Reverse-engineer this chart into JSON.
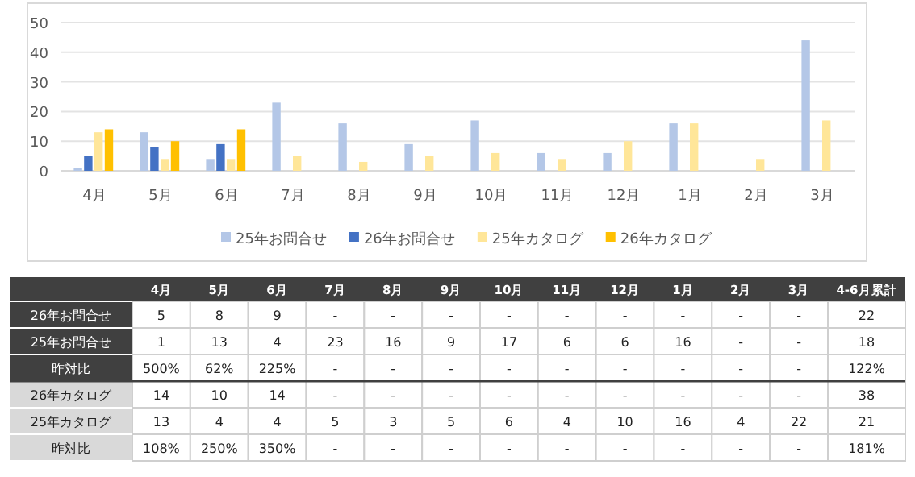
{
  "chart_data": {
    "type": "bar",
    "categories": [
      "4月",
      "5月",
      "6月",
      "7月",
      "8月",
      "9月",
      "10月",
      "11月",
      "12月",
      "1月",
      "2月",
      "3月"
    ],
    "series": [
      {
        "name": "25年お問合せ",
        "color": "#b4c7e7",
        "values": [
          1,
          13,
          4,
          23,
          16,
          9,
          17,
          6,
          6,
          16,
          null,
          44
        ]
      },
      {
        "name": "26年お問合せ",
        "color": "#4472c4",
        "values": [
          5,
          8,
          9,
          null,
          null,
          null,
          null,
          null,
          null,
          null,
          null,
          null
        ]
      },
      {
        "name": "25年カタログ",
        "color": "#ffe699",
        "values": [
          13,
          4,
          4,
          5,
          3,
          5,
          6,
          4,
          10,
          16,
          4,
          17
        ]
      },
      {
        "name": "26年カタログ",
        "color": "#ffc000",
        "values": [
          14,
          10,
          14,
          null,
          null,
          null,
          null,
          null,
          null,
          null,
          null,
          null
        ]
      }
    ],
    "ylim": [
      0,
      50
    ],
    "yticks": [
      0,
      10,
      20,
      30,
      40,
      50
    ],
    "grid": "y",
    "legend": "bottom",
    "annotations": [
      "4月",
      "5月",
      "6月",
      "7月",
      "8月",
      "9月",
      "10月",
      "11月",
      "12月",
      "1月",
      "2月",
      "3月",
      "4-6月累計",
      "26年お問合せ",
      "5",
      "8",
      "9",
      "-",
      "-",
      "-",
      "-",
      "-",
      "-",
      "-",
      "-",
      "-",
      "22",
      "25年お問合せ",
      "1",
      "13",
      "4",
      "23",
      "16",
      "9",
      "17",
      "6",
      "6",
      "16",
      "-",
      "-",
      "18",
      "昨対比",
      "500%",
      "62%",
      "225%",
      "-",
      "-",
      "-",
      "-",
      "-",
      "-",
      "-",
      "-",
      "-",
      "122%",
      "26年カタログ",
      "14",
      "10",
      "14",
      "-",
      "-",
      "-",
      "-",
      "-",
      "-",
      "-",
      "-",
      "-",
      "38",
      "25年カタログ",
      "13",
      "4",
      "4",
      "5",
      "3",
      "5",
      "6",
      "4",
      "10",
      "16",
      "4",
      "22",
      "21",
      "昨対比",
      "108%",
      "250%",
      "350%",
      "-",
      "-",
      "-",
      "-",
      "-",
      "-",
      "-",
      "-",
      "-",
      "181%"
    ]
  }
}
